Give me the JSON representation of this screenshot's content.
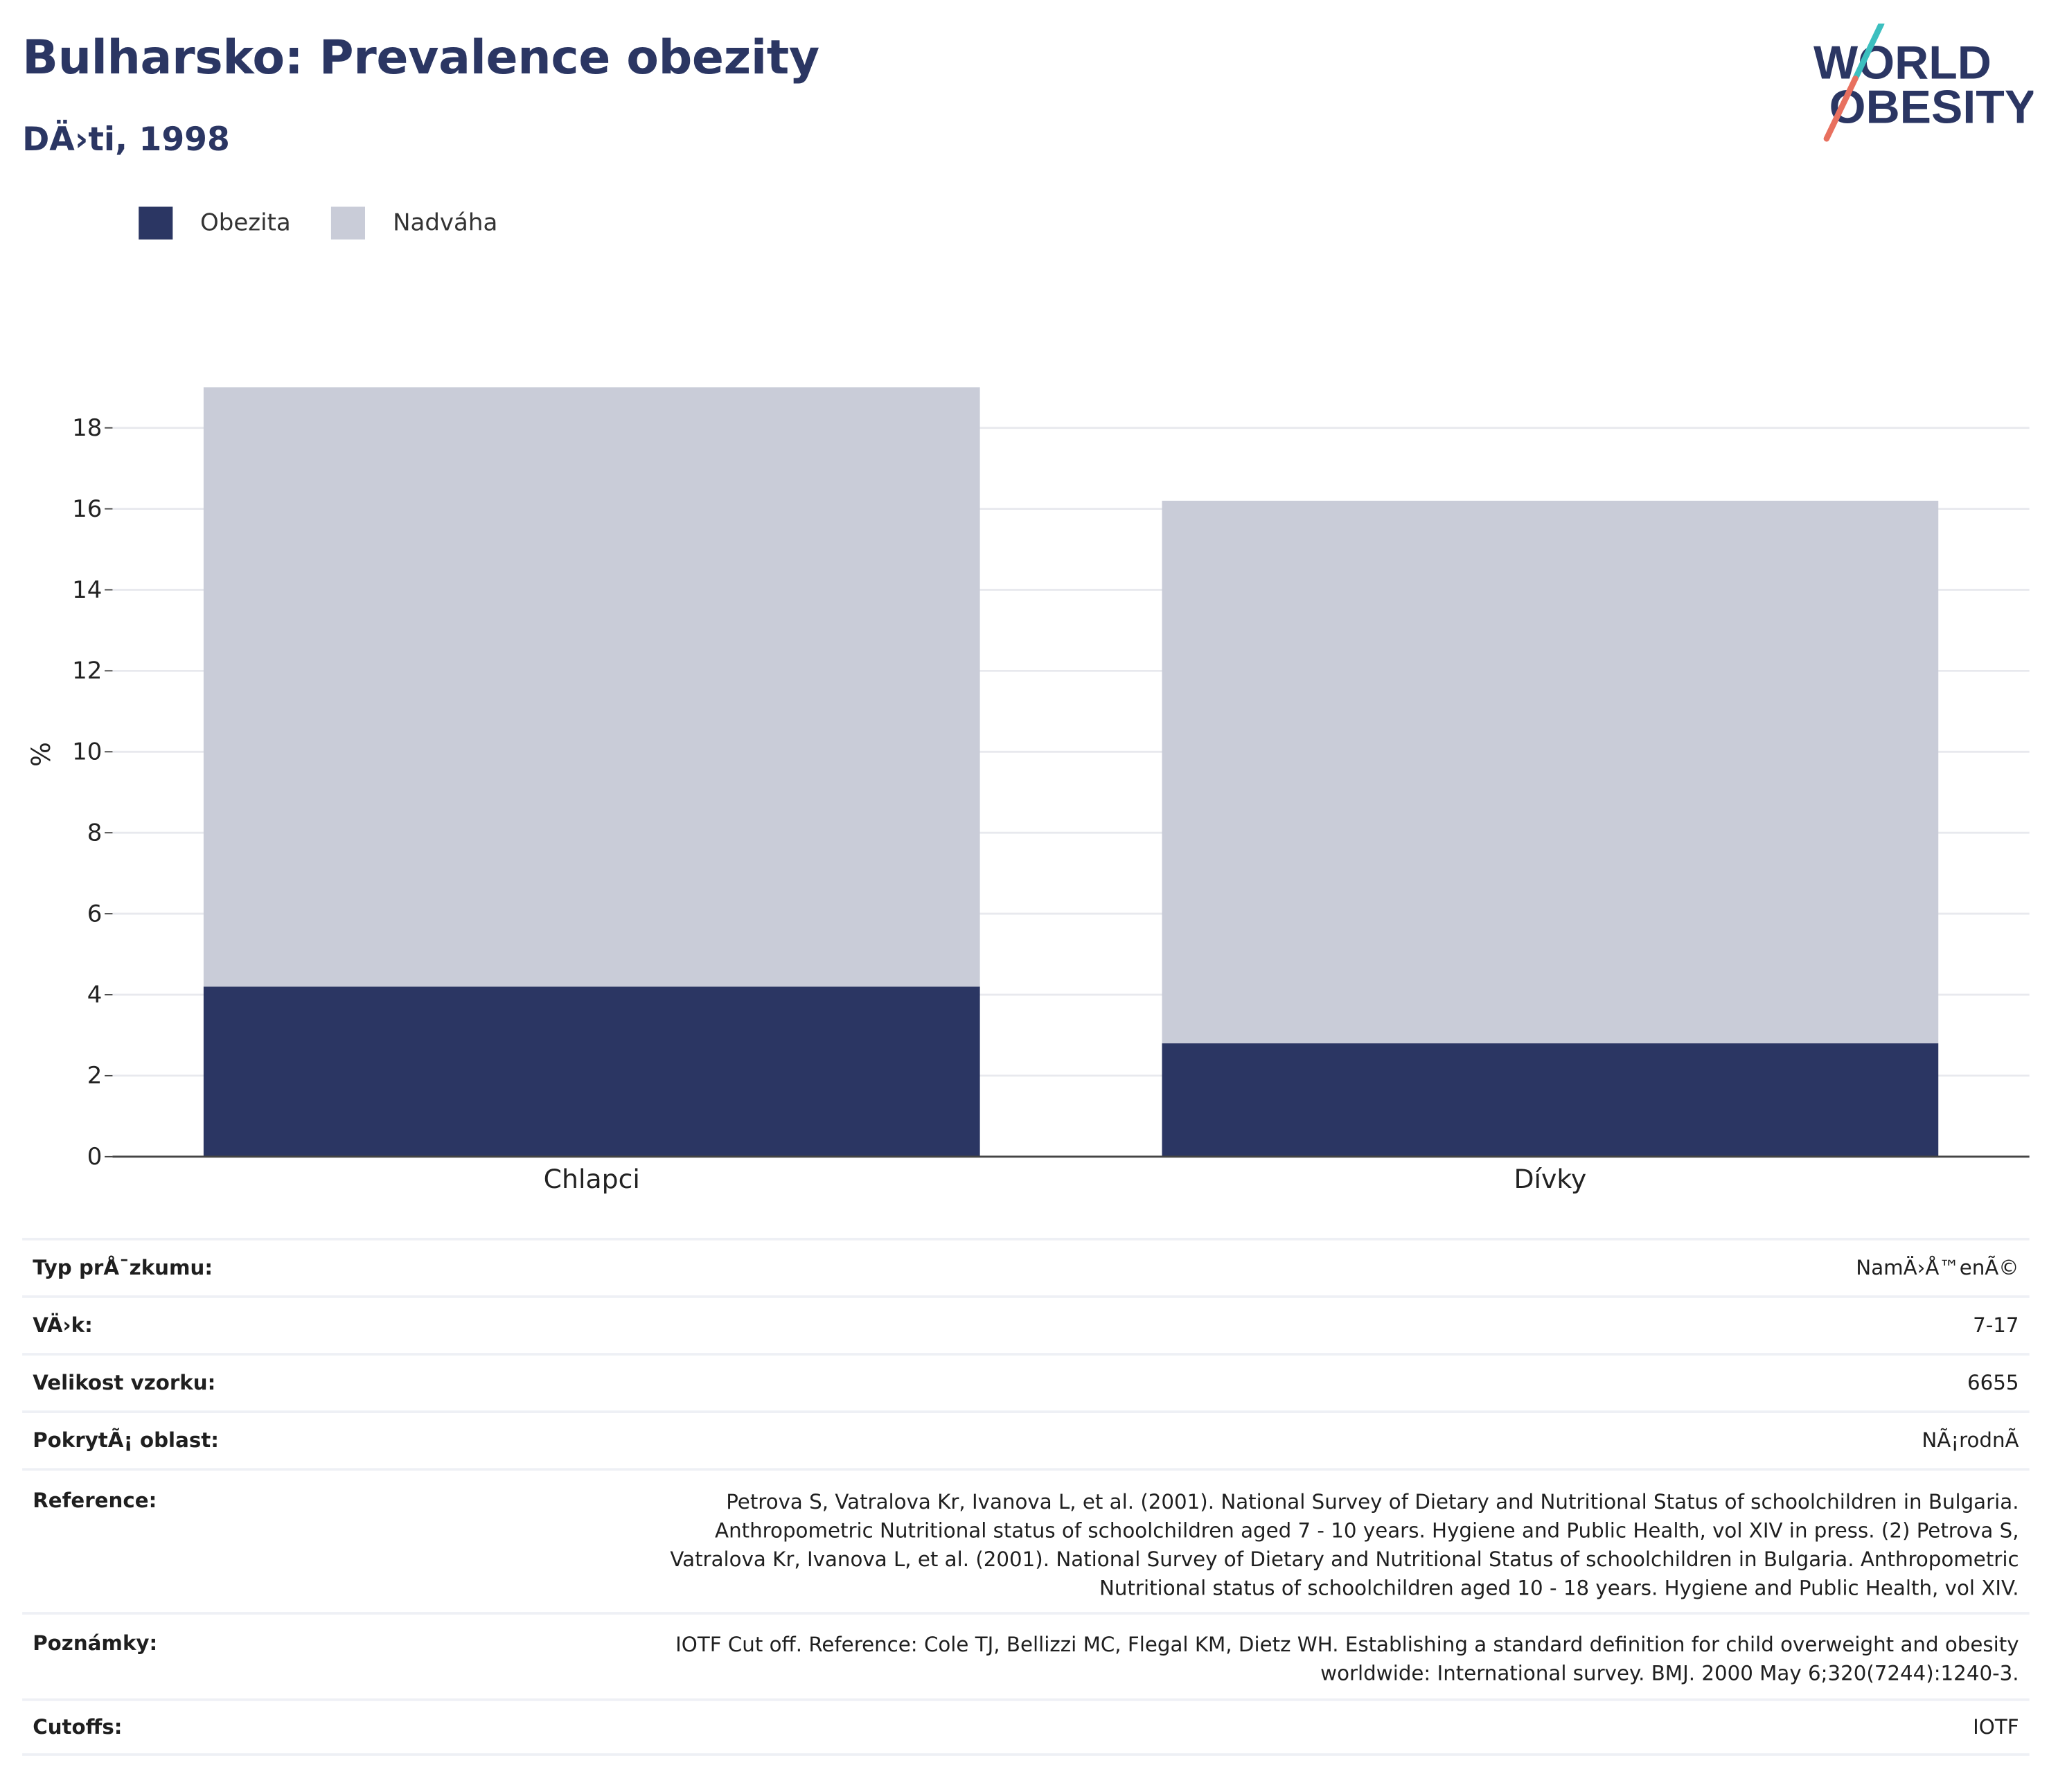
{
  "header": {
    "title": "Bulharsko: Prevalence obezity",
    "subtitle": "DÄ›ti, 1998"
  },
  "logo": {
    "line1": "WORLD",
    "line2": "OBESITY"
  },
  "colors": {
    "obesity": "#2b3663",
    "overweight": "#c9ccd8",
    "title": "#2b3663"
  },
  "legend": [
    {
      "label": "Obezita",
      "color": "#2b3663"
    },
    {
      "label": "Nadváha",
      "color": "#c9ccd8"
    }
  ],
  "chart_data": {
    "type": "bar",
    "stacked": true,
    "categories": [
      "Chlapci",
      "Dívky"
    ],
    "series": [
      {
        "name": "Obezita",
        "values": [
          4.2,
          2.8
        ]
      },
      {
        "name": "Nadváha",
        "values": [
          14.8,
          13.4
        ]
      }
    ],
    "ylabel": "%",
    "ylim": [
      0,
      19
    ],
    "yticks": [
      0,
      2,
      4,
      6,
      8,
      10,
      12,
      14,
      16,
      18
    ],
    "grid": true,
    "legend_position": "top-left"
  },
  "details": [
    {
      "label": "Typ prÅ¯zkumu:",
      "value": "NamÄ›Å™enÃ©"
    },
    {
      "label": "VÄ›k:",
      "value": "7-17"
    },
    {
      "label": "Velikost vzorku:",
      "value": "6655"
    },
    {
      "label": "PokrytÃ¡ oblast:",
      "value": "NÃ¡rodnÃ"
    },
    {
      "label": "Reference:",
      "value_lines": [
        "Petrova S, Vatralova Kr, Ivanova L, et al. (2001). National Survey of Dietary and Nutritional Status of schoolchildren in Bulgaria.",
        "Anthropometric Nutritional status of schoolchildren aged 7 - 10 years. Hygiene and Public Health, vol XIV in press. (2) Petrova S,",
        "Vatralova Kr, Ivanova L, et al. (2001). National Survey of Dietary and Nutritional Status of schoolchildren in Bulgaria. Anthropometric",
        "Nutritional status of schoolchildren aged 10 - 18 years. Hygiene and Public Health, vol XIV."
      ]
    },
    {
      "label": "Poznámky:",
      "value_lines": [
        "IOTF Cut off. Reference: Cole TJ, Bellizzi MC, Flegal KM, Dietz WH. Establishing a standard definition for child overweight and obesity",
        "worldwide: International survey. BMJ. 2000 May 6;320(7244):1240-3."
      ]
    },
    {
      "label": "Cutoffs:",
      "value": "IOTF"
    }
  ]
}
